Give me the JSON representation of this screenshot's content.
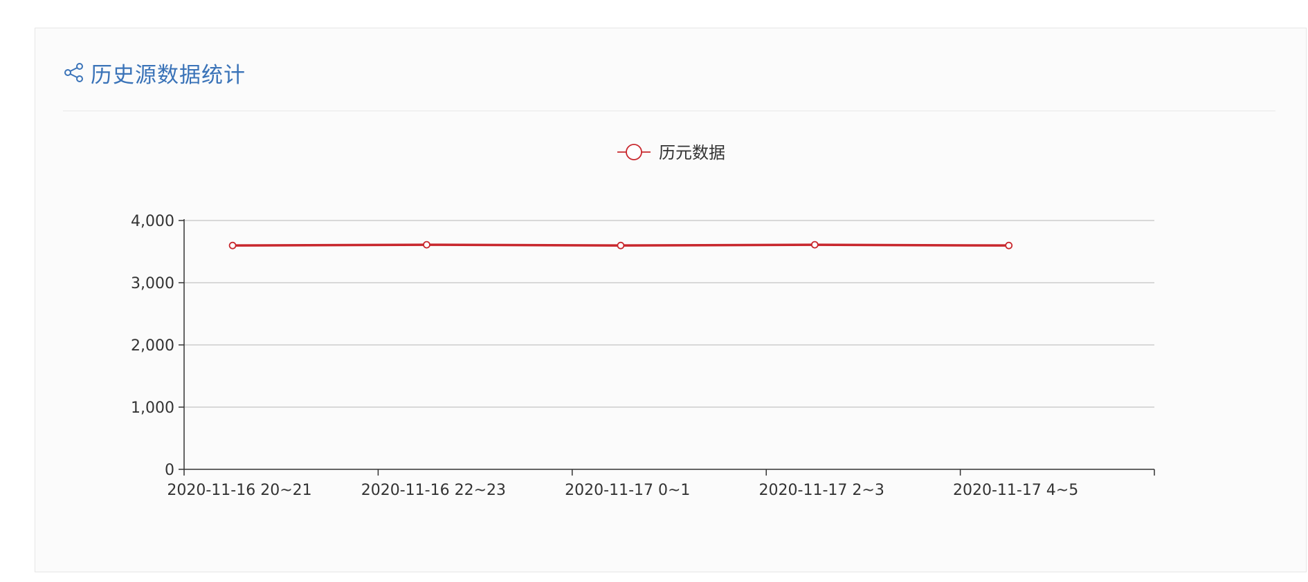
{
  "panel": {
    "title": "历史源数据统计",
    "icon": "share-icon",
    "accent_color": "#3a73b8"
  },
  "chart_data": {
    "type": "line",
    "categories": [
      "2020-11-16 20~21",
      "2020-11-16 22~23",
      "2020-11-17 0~1",
      "2020-11-17 2~3",
      "2020-11-17 4~5"
    ],
    "series": [
      {
        "name": "历元数据",
        "color": "#c8272d",
        "values": [
          3598,
          3610,
          3598,
          3610,
          3598
        ]
      }
    ],
    "title": "",
    "xlabel": "",
    "ylabel": "",
    "ylim": [
      0,
      4000
    ],
    "yticks": [
      "0",
      "1,000",
      "2,000",
      "3,000",
      "4,000"
    ],
    "ytick_values": [
      0,
      1000,
      2000,
      3000,
      4000
    ],
    "grid": true,
    "legend_placement": "top-center"
  }
}
